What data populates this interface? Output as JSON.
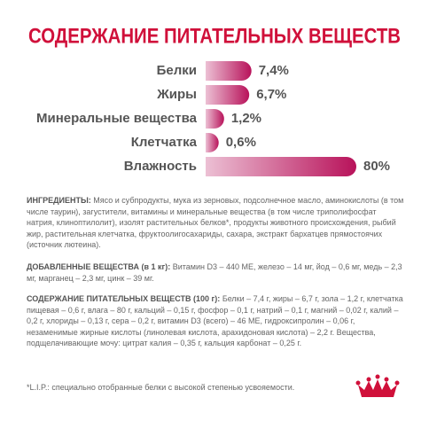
{
  "chart_data": {
    "type": "bar",
    "orientation": "horizontal",
    "title": "СОДЕРЖАНИЕ ПИТАТЕЛЬНЫХ ВЕЩЕСТВ",
    "categories": [
      "Белки",
      "Жиры",
      "Минеральные вещества",
      "Клетчатка",
      "Влажность"
    ],
    "values": [
      7.4,
      6.7,
      1.2,
      0.6,
      80
    ],
    "value_labels": [
      "7,4%",
      "6,7%",
      "1,2%",
      "0,6%",
      "80%"
    ],
    "color": "#b8125a"
  },
  "ingredients": {
    "label": "ИНГРЕДИЕНТЫ:",
    "text": "Мясо и субпродукты, мука из зерновых, подсолнечное масло, аминокислоты (в том числе таурин), загустители, витамины и минеральные вещества (в том числе триполифосфат натрия, клиноптилолит), изолят растительных белков*, продукты животного происхождения, рыбий жир, растительная клетчатка, фруктоолигосахариды, сахара, экстракт бархатцев прямостоячих (источник лютеина)."
  },
  "additives": {
    "label": "ДОБАВЛЕННЫЕ ВЕЩЕСТВА (в 1 кг):",
    "text": "Витамин D3 – 440 МЕ, железо – 14 мг, йод – 0,6 мг, медь – 2,3 мг, марганец – 2,3 мг, цинк – 39 мг."
  },
  "nutrients": {
    "label": "СОДЕРЖАНИЕ ПИТАТЕЛЬНЫХ ВЕЩЕСТВ (100 г):",
    "text": "Белки – 7,4 г, жиры – 6,7 г, зола – 1,2 г, клетчатка пищевая – 0,6 г, влага – 80 г, кальций – 0,15 г, фосфор – 0,1 г, натрий – 0,1 г, магний – 0,02 г, калий – 0,2 г, хлориды – 0,13 г, сера – 0,2 г, витамин D3 (всего) – 46 МЕ, гидроксипролин – 0,06 г, незаменимые жирные кислоты (линолевая кислота, арахидоновая кислота) – 2,2 г. Вещества, подщелачивающие мочу: цитрат калия – 0,35 г, кальция карбонат – 0,25 г."
  },
  "footnote": "*L.I.P.: специально отобранные белки с высокой степенью усвояемости."
}
